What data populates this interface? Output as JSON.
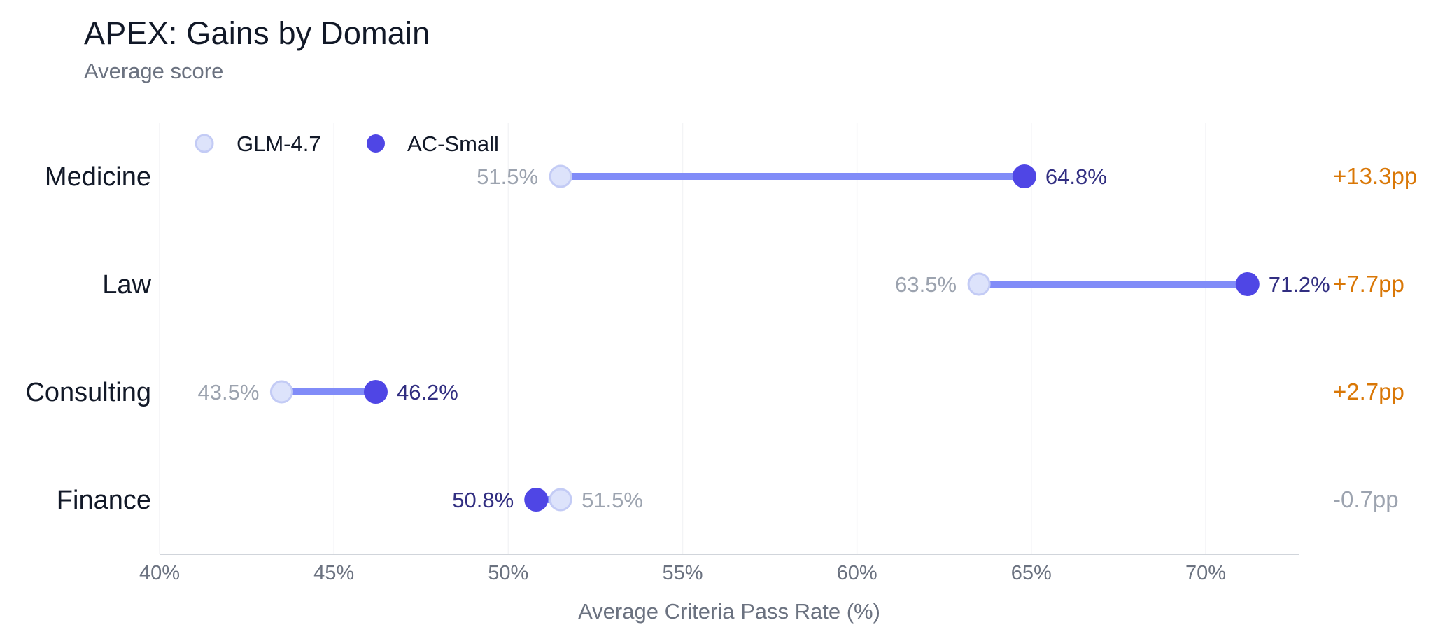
{
  "chart_data": {
    "type": "dumbbell",
    "title": "APEX: Gains by Domain",
    "subtitle": "Average score",
    "xlabel": "Average Criteria Pass Rate (%)",
    "ylabel": "",
    "xlim": [
      40,
      73
    ],
    "xticks": [
      40,
      45,
      50,
      55,
      60,
      65,
      70
    ],
    "xtick_labels": [
      "40%",
      "45%",
      "50%",
      "55%",
      "60%",
      "65%",
      "70%"
    ],
    "grid": "vertical",
    "legend_position": "top-left",
    "series": [
      {
        "name": "GLM-4.7",
        "color": "#dde3fb",
        "values": [
          51.5,
          63.5,
          43.5,
          51.5
        ]
      },
      {
        "name": "AC-Small",
        "color": "#4f46e5",
        "values": [
          64.8,
          71.2,
          46.2,
          50.8
        ]
      }
    ],
    "categories": [
      "Medicine",
      "Law",
      "Consulting",
      "Finance"
    ],
    "rows": [
      {
        "category": "Medicine",
        "base": 51.5,
        "new": 64.8,
        "base_label": "51.5%",
        "new_label": "64.8%",
        "delta_label": "+13.3pp",
        "delta_positive": true
      },
      {
        "category": "Law",
        "base": 63.5,
        "new": 71.2,
        "base_label": "63.5%",
        "new_label": "71.2%",
        "delta_label": "+7.7pp",
        "delta_positive": true
      },
      {
        "category": "Consulting",
        "base": 43.5,
        "new": 46.2,
        "base_label": "43.5%",
        "new_label": "46.2%",
        "delta_label": "+2.7pp",
        "delta_positive": true
      },
      {
        "category": "Finance",
        "base": 51.5,
        "new": 50.8,
        "base_label": "51.5%",
        "new_label": "50.8%",
        "delta_label": "-0.7pp",
        "delta_positive": false
      }
    ],
    "colors": {
      "base_fill": "#dde3fb",
      "base_stroke": "#c3cbf5",
      "new_fill": "#4f46e5",
      "connector": "#818cf8",
      "base_label": "#9ca3af",
      "new_label": "#312e81",
      "delta_positive": "#d97706",
      "delta_negative": "#9ca3af",
      "grid": "#f3f4f6",
      "axis": "#d1d5db",
      "tick_label": "#6b7280",
      "category_label": "#111827"
    }
  }
}
